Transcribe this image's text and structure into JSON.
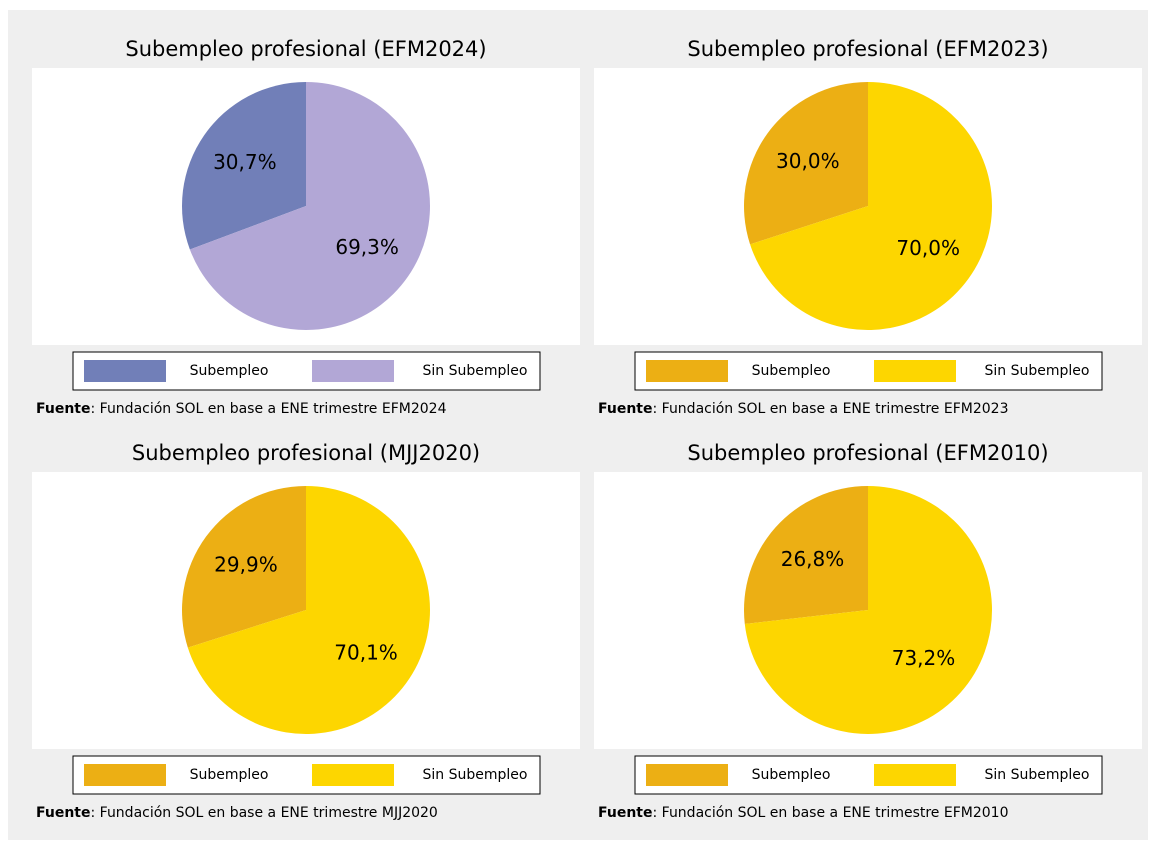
{
  "chart_data": [
    {
      "type": "pie",
      "title": "Subempleo profesional (EFM2024)",
      "categories": [
        "Subempleo",
        "Sin Subempleo"
      ],
      "values": [
        30.7,
        69.3
      ],
      "value_labels": [
        "30,7%",
        "69,3%"
      ],
      "colors": [
        "#717fb8",
        "#b2a7d6"
      ],
      "source": {
        "label": "Fuente",
        "text": ": Fundación SOL en base a ENE trimestre EFM2024"
      }
    },
    {
      "type": "pie",
      "title": "Subempleo profesional (EFM2023)",
      "categories": [
        "Subempleo",
        "Sin Subempleo"
      ],
      "values": [
        30.0,
        70.0
      ],
      "value_labels": [
        "30,0%",
        "70,0%"
      ],
      "colors": [
        "#ecaf14",
        "#fdd600"
      ],
      "source": {
        "label": "Fuente",
        "text": ": Fundación SOL en base a ENE trimestre EFM2023"
      }
    },
    {
      "type": "pie",
      "title": "Subempleo profesional (MJJ2020)",
      "categories": [
        "Subempleo",
        "Sin Subempleo"
      ],
      "values": [
        29.9,
        70.1
      ],
      "value_labels": [
        "29,9%",
        "70,1%"
      ],
      "colors": [
        "#ecaf14",
        "#fdd600"
      ],
      "source": {
        "label": "Fuente",
        "text": ": Fundación SOL en base a ENE trimestre MJJ2020"
      }
    },
    {
      "type": "pie",
      "title": "Subempleo profesional (EFM2010)",
      "categories": [
        "Subempleo",
        "Sin Subempleo"
      ],
      "values": [
        26.8,
        73.2
      ],
      "value_labels": [
        "26,8%",
        "73,2%"
      ],
      "colors": [
        "#ecaf14",
        "#fdd600"
      ],
      "source": {
        "label": "Fuente",
        "text": ": Fundación SOL en base a ENE trimestre EFM2010"
      }
    }
  ]
}
